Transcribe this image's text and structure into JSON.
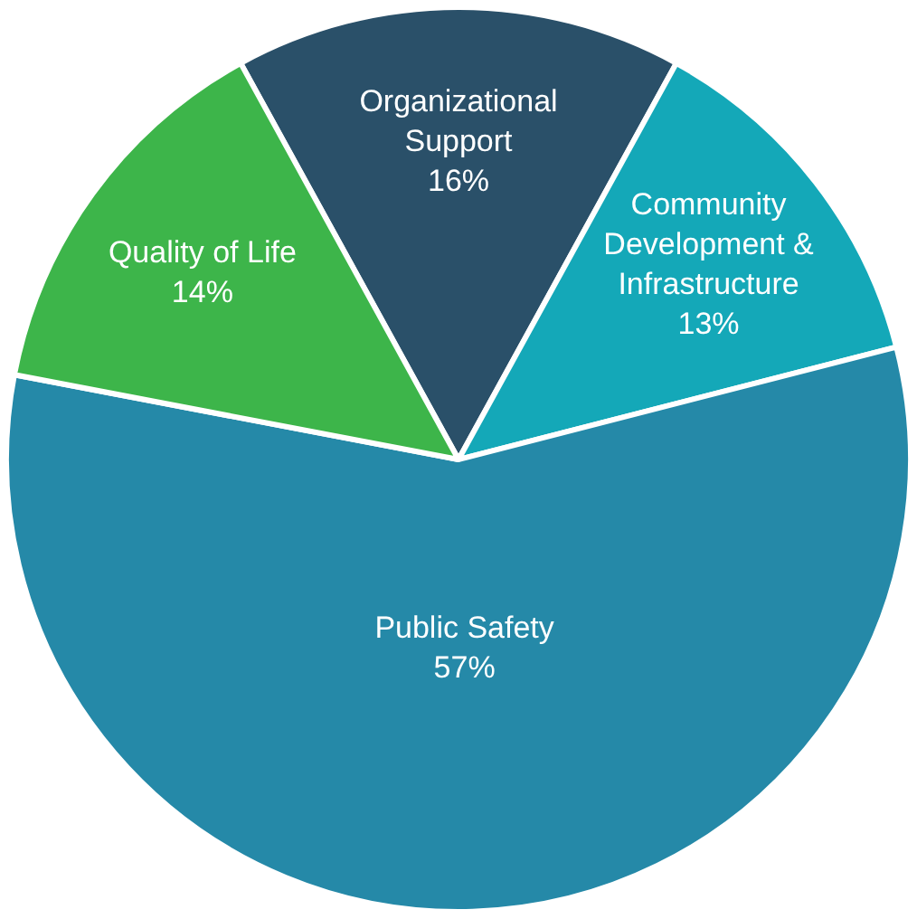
{
  "chart_data": {
    "type": "pie",
    "categories": [
      "Organizational Support",
      "Community Development & Infrastructure",
      "Public Safety",
      "Quality of Life"
    ],
    "values": [
      16,
      13,
      57,
      14
    ],
    "value_labels": [
      "16%",
      "13%",
      "57%",
      "14%"
    ],
    "colors": [
      "#2a5069",
      "#14a8b8",
      "#2589a8",
      "#3db54a"
    ],
    "legend": false
  }
}
